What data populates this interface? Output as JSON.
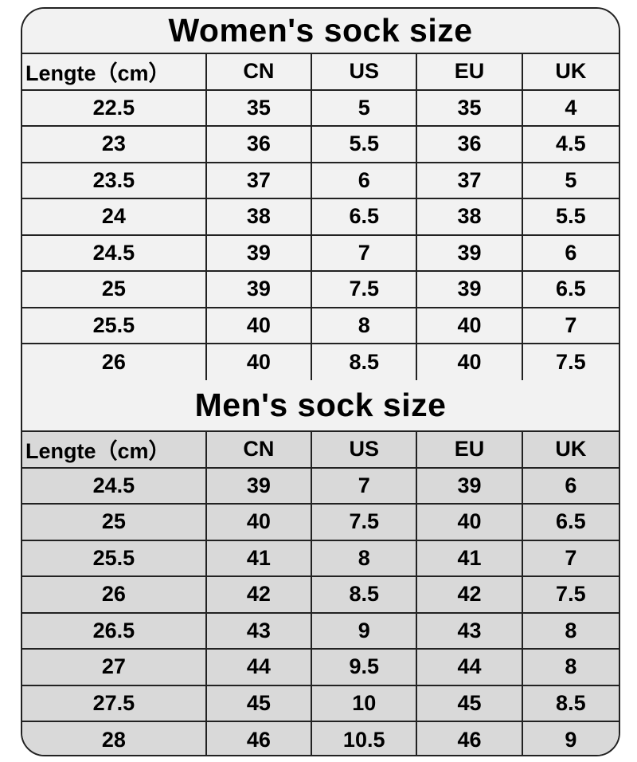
{
  "colors": {
    "women_bg": "#f2f2f2",
    "men_bg": "#d9d9d9",
    "border": "#222222"
  },
  "sections": [
    {
      "title": "Women's sock size",
      "headers": [
        "Lengte（cm）",
        "CN",
        "US",
        "EU",
        "UK"
      ],
      "rows": [
        [
          "22.5",
          "35",
          "5",
          "35",
          "4"
        ],
        [
          "23",
          "36",
          "5.5",
          "36",
          "4.5"
        ],
        [
          "23.5",
          "37",
          "6",
          "37",
          "5"
        ],
        [
          "24",
          "38",
          "6.5",
          "38",
          "5.5"
        ],
        [
          "24.5",
          "39",
          "7",
          "39",
          "6"
        ],
        [
          "25",
          "39",
          "7.5",
          "39",
          "6.5"
        ],
        [
          "25.5",
          "40",
          "8",
          "40",
          "7"
        ],
        [
          "26",
          "40",
          "8.5",
          "40",
          "7.5"
        ]
      ]
    },
    {
      "title": "Men's sock size",
      "headers": [
        "Lengte（cm）",
        "CN",
        "US",
        "EU",
        "UK"
      ],
      "rows": [
        [
          "24.5",
          "39",
          "7",
          "39",
          "6"
        ],
        [
          "25",
          "40",
          "7.5",
          "40",
          "6.5"
        ],
        [
          "25.5",
          "41",
          "8",
          "41",
          "7"
        ],
        [
          "26",
          "42",
          "8.5",
          "42",
          "7.5"
        ],
        [
          "26.5",
          "43",
          "9",
          "43",
          "8"
        ],
        [
          "27",
          "44",
          "9.5",
          "44",
          "8"
        ],
        [
          "27.5",
          "45",
          "10",
          "45",
          "8.5"
        ],
        [
          "28",
          "46",
          "10.5",
          "46",
          "9"
        ]
      ]
    }
  ]
}
